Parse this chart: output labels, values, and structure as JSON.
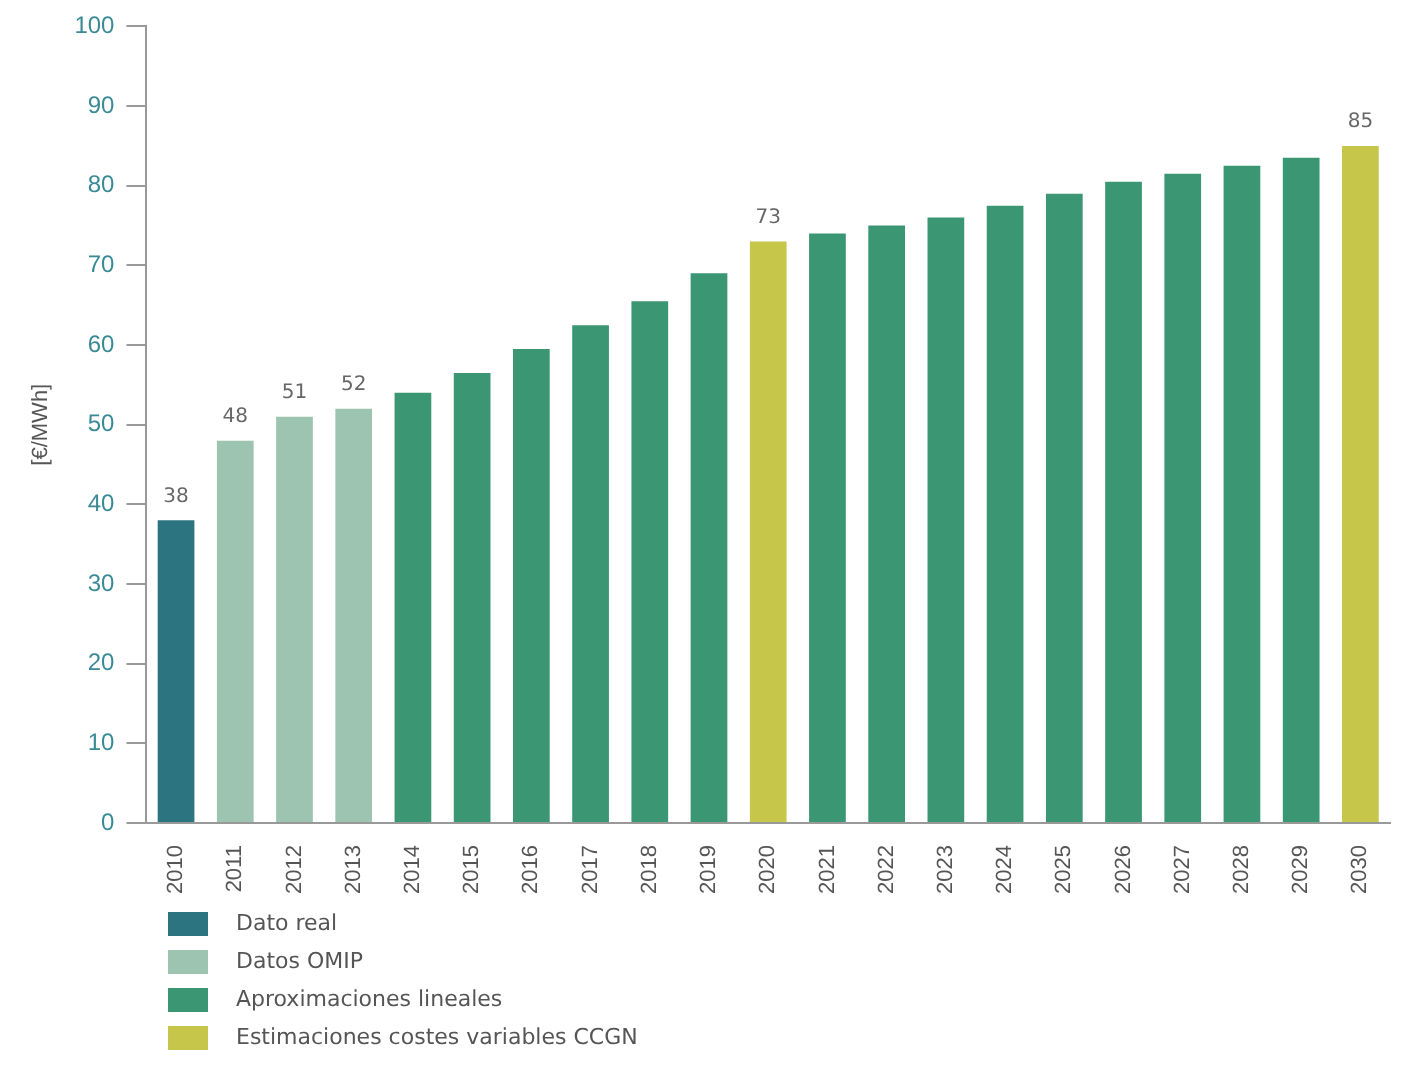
{
  "chart_data": {
    "type": "bar",
    "ylabel": "[€/MWh]",
    "categories": [
      "2010",
      "2011",
      "2012",
      "2013",
      "2014",
      "2015",
      "2016",
      "2017",
      "2018",
      "2019",
      "2020",
      "2021",
      "2022",
      "2023",
      "2024",
      "2025",
      "2026",
      "2027",
      "2028",
      "2029",
      "2030"
    ],
    "series": [
      {
        "name": "Dato real",
        "color": "#2b7480",
        "values": [
          38,
          null,
          null,
          null,
          null,
          null,
          null,
          null,
          null,
          null,
          null,
          null,
          null,
          null,
          null,
          null,
          null,
          null,
          null,
          null,
          null
        ],
        "value_labels": [
          "38",
          null,
          null,
          null,
          null,
          null,
          null,
          null,
          null,
          null,
          null,
          null,
          null,
          null,
          null,
          null,
          null,
          null,
          null,
          null,
          null
        ]
      },
      {
        "name": "Datos OMIP",
        "color": "#9dc4b0",
        "values": [
          null,
          48,
          51,
          52,
          null,
          null,
          null,
          null,
          null,
          null,
          null,
          null,
          null,
          null,
          null,
          null,
          null,
          null,
          null,
          null,
          null
        ],
        "value_labels": [
          null,
          "48",
          "51",
          "52",
          null,
          null,
          null,
          null,
          null,
          null,
          null,
          null,
          null,
          null,
          null,
          null,
          null,
          null,
          null,
          null,
          null
        ]
      },
      {
        "name": "Aproximaciones lineales",
        "color": "#3a9673",
        "values": [
          null,
          null,
          null,
          null,
          54,
          56.5,
          59.5,
          62.5,
          65.5,
          69,
          null,
          74,
          75,
          76,
          77.5,
          79,
          80.5,
          81.5,
          82.5,
          83.5,
          null
        ]
      },
      {
        "name": "Estimaciones costes variables CCGN",
        "color": "#c6c64a",
        "values": [
          null,
          null,
          null,
          null,
          null,
          null,
          null,
          null,
          null,
          null,
          73,
          null,
          null,
          null,
          null,
          null,
          null,
          null,
          null,
          null,
          85
        ],
        "value_labels": [
          null,
          null,
          null,
          null,
          null,
          null,
          null,
          null,
          null,
          null,
          "73",
          null,
          null,
          null,
          null,
          null,
          null,
          null,
          null,
          null,
          "85"
        ]
      }
    ],
    "ylim": [
      0,
      100
    ],
    "yticks": [
      0,
      10,
      20,
      30,
      40,
      50,
      60,
      70,
      80,
      90,
      100
    ],
    "grid": false,
    "legend": "bottom left"
  }
}
